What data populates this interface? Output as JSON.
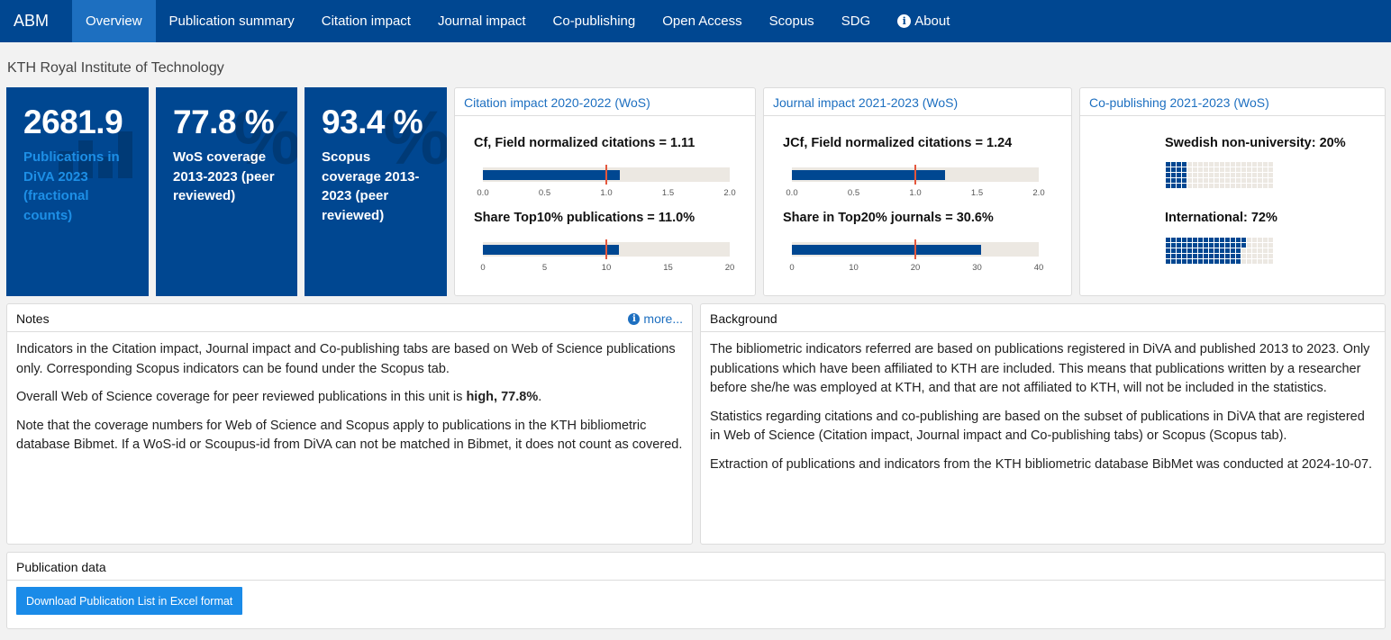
{
  "nav": {
    "brand": "ABM",
    "items": [
      {
        "label": "Overview",
        "active": true
      },
      {
        "label": "Publication summary",
        "active": false
      },
      {
        "label": "Citation impact",
        "active": false
      },
      {
        "label": "Journal impact",
        "active": false
      },
      {
        "label": "Co-publishing",
        "active": false
      },
      {
        "label": "Open Access",
        "active": false
      },
      {
        "label": "Scopus",
        "active": false
      },
      {
        "label": "SDG",
        "active": false
      },
      {
        "label": "About",
        "active": false,
        "icon": "info-icon"
      }
    ]
  },
  "org_title": "KTH Royal Institute of Technology",
  "value_boxes": [
    {
      "value": "2681.9",
      "label": "Publications in DiVA 2023 (fractional counts)",
      "icon": "bar-chart-icon",
      "label_color": "#1d8fe6"
    },
    {
      "value": "77.8 %",
      "label": "WoS coverage 2013-2023 (peer reviewed)",
      "icon": "percent-icon",
      "label_color": "#ffffff"
    },
    {
      "value": "93.4 %",
      "label": "Scopus coverage 2013-2023 (peer reviewed)",
      "icon": "percent-icon",
      "label_color": "#ffffff"
    }
  ],
  "citation_card": {
    "title": "Citation impact 2020-2022 (WoS)",
    "cf_label": "Cf, Field normalized citations = 1.11",
    "top10_label": "Share Top10% publications = 11.0%"
  },
  "journal_card": {
    "title": "Journal impact 2021-2023 (WoS)",
    "jcf_label": "JCf, Field normalized citations = 1.24",
    "top20_label": "Share in Top20% journals = 30.6%"
  },
  "copub_card": {
    "title": "Co-publishing 2021-2023 (WoS)",
    "swedish_label": "Swedish non-university: 20%",
    "intl_label": "International: 72%"
  },
  "chart_data": [
    {
      "type": "bullet",
      "name": "Cf, Field normalized citations",
      "value": 1.11,
      "target": 1.0,
      "range": [
        0,
        2
      ],
      "ticks": [
        "0.0",
        "0.5",
        "1.0",
        "1.5",
        "2.0"
      ]
    },
    {
      "type": "bullet",
      "name": "Share Top10% publications",
      "value": 11.0,
      "target": 10,
      "range": [
        0,
        20
      ],
      "ticks": [
        "0",
        "5",
        "10",
        "15",
        "20"
      ]
    },
    {
      "type": "bullet",
      "name": "JCf, Field normalized citations",
      "value": 1.24,
      "target": 1.0,
      "range": [
        0,
        2
      ],
      "ticks": [
        "0.0",
        "0.5",
        "1.0",
        "1.5",
        "2.0"
      ]
    },
    {
      "type": "bullet",
      "name": "Share in Top20% journals",
      "value": 30.6,
      "target": 20,
      "range": [
        0,
        40
      ],
      "ticks": [
        "0",
        "10",
        "20",
        "30",
        "40"
      ]
    },
    {
      "type": "waffle",
      "name": "Swedish non-university",
      "value": 20,
      "total": 100
    },
    {
      "type": "waffle",
      "name": "International",
      "value": 72,
      "total": 100
    }
  ],
  "colors": {
    "nav": "#004791",
    "nav_active": "#1d6fc0",
    "bar": "#004791",
    "marker": "#e4573d",
    "track": "#ece8e2",
    "link": "#1d6fc0",
    "button": "#1a8be8"
  },
  "notes": {
    "title": "Notes",
    "more": "more...",
    "p1": "Indicators in the Citation impact, Journal impact and Co-publishing tabs are based on Web of Science publications only. Corresponding Scopus indicators can be found under the Scopus tab.",
    "p2_prefix": "Overall Web of Science coverage for peer reviewed publications in this unit is ",
    "p2_bold": "high, 77.8%",
    "p2_suffix": ".",
    "p3": "Note that the coverage numbers for Web of Science and Scopus apply to publications in the KTH bibliometric database Bibmet. If a WoS-id or Scoupus-id from DiVA can not be matched in Bibmet, it does not count as covered."
  },
  "background": {
    "title": "Background",
    "p1": "The bibliometric indicators referred are based on publications registered in DiVA and published 2013 to 2023. Only publications which have been affiliated to KTH are included. This means that publications written by a researcher before she/he was employed at KTH, and that are not affiliated to KTH, will not be included in the statistics.",
    "p2": "Statistics regarding citations and co-publishing are based on the subset of publications in DiVA that are registered in Web of Science (Citation impact, Journal impact and Co-publishing tabs) or Scopus (Scopus tab).",
    "p3": "Extraction of publications and indicators from the KTH bibliometric database BibMet was conducted at 2024-10-07."
  },
  "publication_data": {
    "title": "Publication data",
    "button": "Download Publication List in Excel format"
  }
}
